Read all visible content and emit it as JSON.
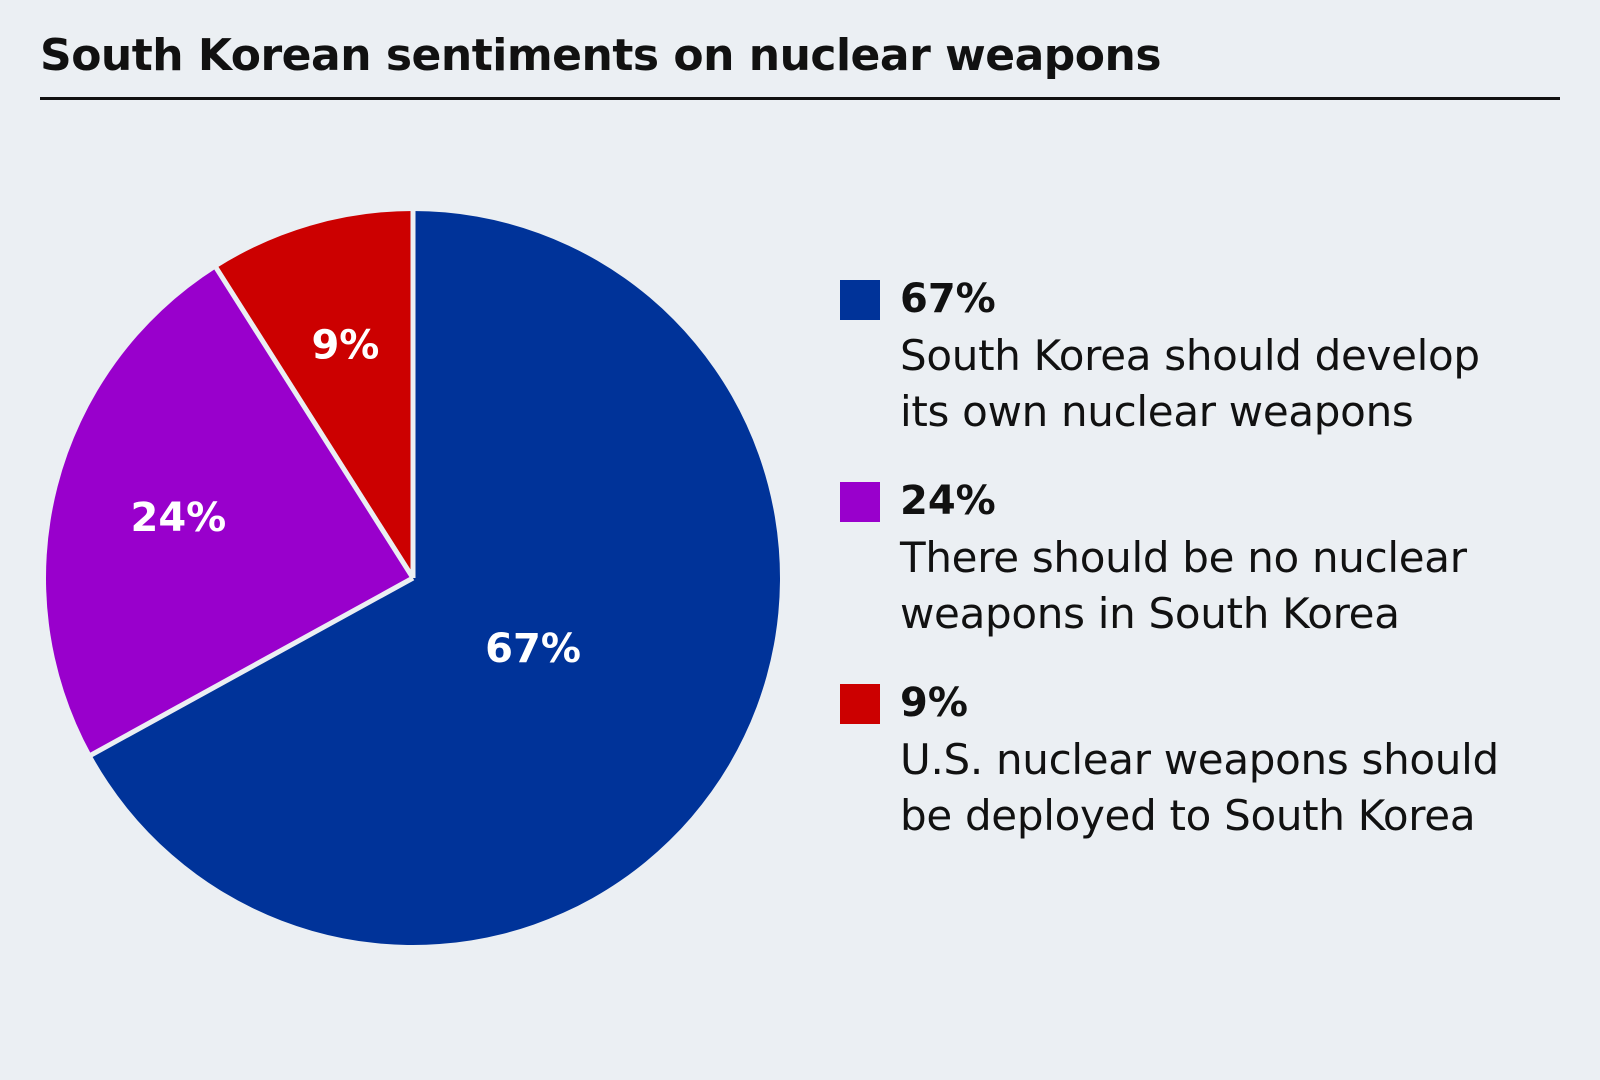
{
  "title": "South Korean sentiments on nuclear weapons",
  "colors": {
    "background": "#ebeff3",
    "slice_own_weapons": "#003399",
    "slice_no_weapons": "#9900cc",
    "slice_us_weapons": "#cc0000",
    "separator": "#ebeff3"
  },
  "chart_data": {
    "type": "pie",
    "title": "South Korean sentiments on nuclear weapons",
    "slices": [
      {
        "label": "South Korea should develop its own nuclear weapons",
        "value": 67,
        "display": "67%",
        "color": "#003399"
      },
      {
        "label": "There should be no nuclear weapons in South Korea",
        "value": 24,
        "display": "24%",
        "color": "#9900cc"
      },
      {
        "label": "U.S. nuclear weapons should be deployed to South Korea",
        "value": 9,
        "display": "9%",
        "color": "#cc0000"
      }
    ],
    "legend_position": "right",
    "start_angle": "12 o'clock",
    "direction": "clockwise"
  },
  "legend": {
    "items": [
      {
        "value": "67%",
        "text": "South Korea should develop\nits own nuclear weapons",
        "color": "#003399"
      },
      {
        "value": "24%",
        "text": "There should be no nuclear\nweapons in South Korea",
        "color": "#9900cc"
      },
      {
        "value": "9%",
        "text": "U.S. nuclear weapons should\nbe deployed to South Korea",
        "color": "#cc0000"
      }
    ]
  }
}
